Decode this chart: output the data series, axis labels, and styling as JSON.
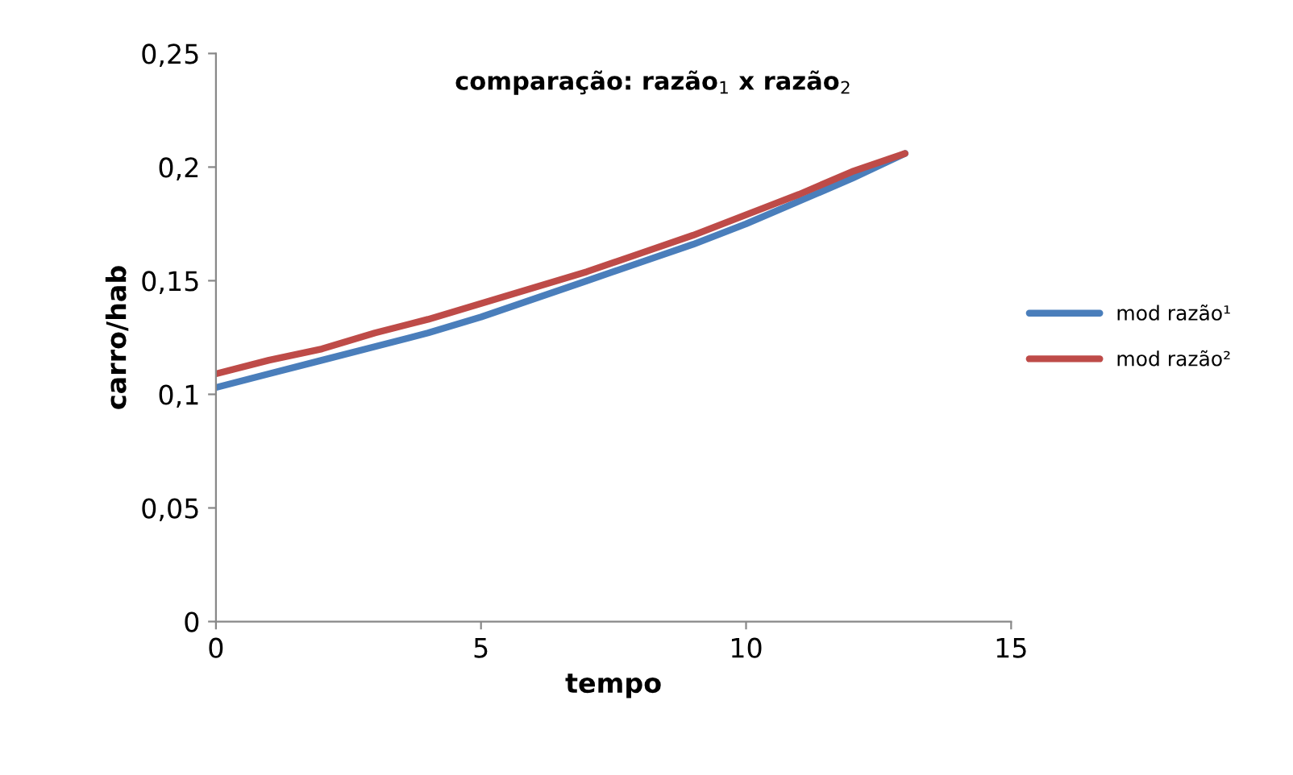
{
  "chart_data": {
    "type": "line",
    "title": "comparação: razão$_{1}$ x razão$_{2}$",
    "xlabel": "tempo",
    "ylabel": "carro/hab",
    "x": [
      0,
      1,
      2,
      3,
      4,
      5,
      6,
      7,
      8,
      9,
      10,
      11,
      12,
      13
    ],
    "series": [
      {
        "name": "mod razão¹",
        "color": "#4a7ebb",
        "values": [
          0.103,
          0.109,
          0.115,
          0.121,
          0.127,
          0.134,
          0.142,
          0.15,
          0.158,
          0.166,
          0.175,
          0.185,
          0.195,
          0.206
        ]
      },
      {
        "name": "mod razão²",
        "color": "#be4b48",
        "values": [
          0.109,
          0.115,
          0.12,
          0.127,
          0.133,
          0.14,
          0.147,
          0.154,
          0.162,
          0.17,
          0.179,
          0.188,
          0.198,
          0.206
        ]
      }
    ],
    "xlim": [
      0,
      15
    ],
    "xticks": [
      0,
      5,
      10,
      15
    ],
    "ylim": [
      0,
      0.25
    ],
    "yticks": [
      {
        "value": 0,
        "label": "0"
      },
      {
        "value": 0.05,
        "label": "0,05"
      },
      {
        "value": 0.1,
        "label": "0,1"
      },
      {
        "value": 0.15,
        "label": "0,15"
      },
      {
        "value": 0.2,
        "label": "0,2"
      },
      {
        "value": 0.25,
        "label": "0,25"
      }
    ],
    "grid": false,
    "legend": "right",
    "marker": "none",
    "line_style": "solid"
  }
}
